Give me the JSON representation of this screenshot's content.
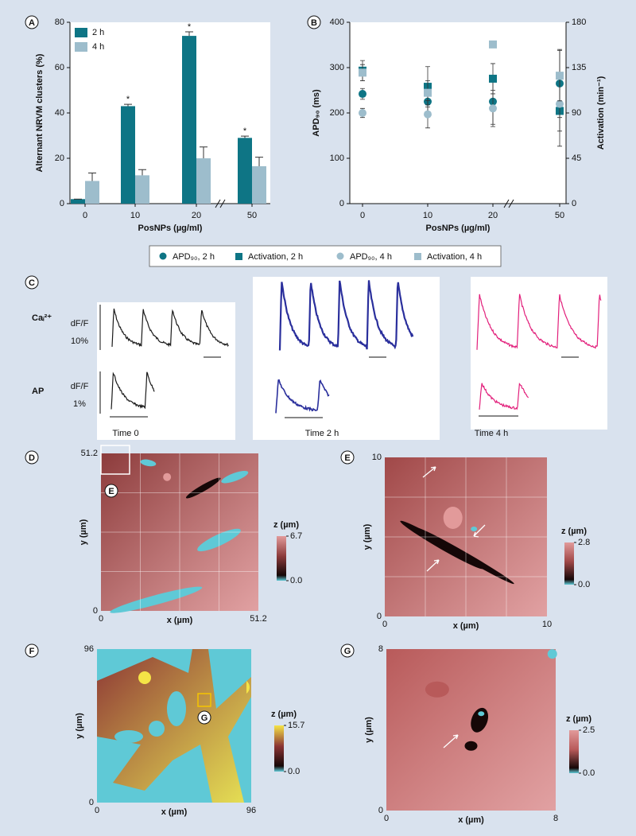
{
  "chart_data": [
    {
      "type": "bar",
      "panel_label": "A",
      "ylabel": "Alternant NRVM clusters (%)",
      "xlabel": "PosNPs (µg/ml)",
      "categories": [
        "0",
        "10",
        "20",
        "50"
      ],
      "series": [
        {
          "name": "2 h",
          "color": "#0e7585",
          "values": [
            2,
            43,
            74,
            29
          ],
          "errors": [
            0,
            0.8,
            1.8,
            0.8
          ]
        },
        {
          "name": "4 h",
          "color": "#9dbdcc",
          "values": [
            10,
            12.5,
            20,
            16.5
          ],
          "errors": [
            3.5,
            2.5,
            5,
            4
          ]
        }
      ],
      "significance": [
        null,
        "*",
        "*",
        "*"
      ],
      "ylim": [
        0,
        80
      ],
      "yticks": [
        0,
        20,
        40,
        60,
        80
      ],
      "legend": "upper left",
      "axis_break": true
    },
    {
      "type": "scatter",
      "panel_label": "B",
      "ylabel": "APD₉₀ (ms)",
      "y2label": "Activation (min⁻¹)",
      "xlabel": "PosNPs (µg/ml)",
      "categories": [
        "0",
        "10",
        "20",
        "50"
      ],
      "series": [
        {
          "name": "APD₉₀, 2 h",
          "color": "#0e7585",
          "marker": "circle",
          "values": [
            242,
            225,
            225,
            265
          ],
          "errors": [
            12,
            30,
            50,
            75
          ]
        },
        {
          "name": "Activation, 2 h",
          "color": "#0e7585",
          "marker": "square",
          "axis": "y2",
          "values": [
            132,
            116,
            124,
            92
          ],
          "errors": [
            10,
            20,
            15,
            35
          ]
        },
        {
          "name": "APD₉₀, 4 h",
          "color": "#9dbdcc",
          "marker": "circle",
          "values": [
            200,
            197,
            210,
            220
          ],
          "errors": [
            10,
            30,
            40,
            60
          ]
        },
        {
          "name": "Activation, 4 h",
          "color": "#9dbdcc",
          "marker": "square",
          "axis": "y2",
          "values": [
            130,
            110,
            158,
            127
          ],
          "errors": [
            8,
            12,
            0,
            25
          ]
        }
      ],
      "ylim": [
        0,
        400
      ],
      "yticks": [
        0,
        100,
        200,
        300,
        400
      ],
      "y2lim": [
        0,
        180
      ],
      "y2ticks": [
        0,
        45,
        90,
        135,
        180
      ],
      "legend": "below",
      "axis_break": true
    },
    {
      "type": "traces",
      "panel_label": "C",
      "row_labels": [
        "Caᵢ²⁺",
        "AP"
      ],
      "scale_labels": [
        [
          "dF/F",
          "10%"
        ],
        [
          "dF/F",
          "1%"
        ]
      ],
      "conditions": [
        "Time 0",
        "Time 2 h",
        "Time 4 h"
      ],
      "colors": [
        "#1a1a1a",
        "#2a2f9c",
        "#e21f7b"
      ]
    },
    {
      "type": "image",
      "panel_label": "D",
      "xlabel": "x (µm)",
      "ylabel": "y (µm)",
      "xticks": [
        0,
        51.2
      ],
      "yticks": [
        0,
        51.2
      ],
      "colorbar_label": "z (µm)",
      "zticks": [
        {
          "value": 0,
          "label": "0.0"
        },
        6.7
      ],
      "colormap": [
        "#5fc9d6",
        "#150707",
        "#8c3b3b",
        "#e29a9a"
      ],
      "inset_label": "E"
    },
    {
      "type": "image",
      "panel_label": "E",
      "xlabel": "x (µm)",
      "ylabel": "y (µm)",
      "xticks": [
        0,
        10
      ],
      "yticks": [
        0,
        10
      ],
      "colorbar_label": "z (µm)",
      "zticks": [
        {
          "value": 0,
          "label": "0.0"
        },
        2.8
      ],
      "colormap": [
        "#5fc9d6",
        "#150707",
        "#a04848",
        "#e29a9a"
      ]
    },
    {
      "type": "image",
      "panel_label": "F",
      "xlabel": "x (µm)",
      "ylabel": "y (µm)",
      "xticks": [
        0,
        96
      ],
      "yticks": [
        0,
        96
      ],
      "colorbar_label": "z (µm)",
      "zticks": [
        {
          "value": 0,
          "label": "0.0"
        },
        15.7
      ],
      "colormap": [
        "#5fc9d6",
        "#150707",
        "#8c3535",
        "#f5e446"
      ],
      "inset_label": "G"
    },
    {
      "type": "image",
      "panel_label": "G",
      "xlabel": "x (µm)",
      "ylabel": "y (µm)",
      "xticks": [
        0,
        8
      ],
      "yticks": [
        0,
        8
      ],
      "colorbar_label": "z (µm)",
      "zticks": [
        {
          "value": 0,
          "label": "0.0"
        },
        2.5
      ],
      "colormap": [
        "#5fc9d6",
        "#150707",
        "#b85a5a",
        "#e29a9a"
      ]
    }
  ]
}
